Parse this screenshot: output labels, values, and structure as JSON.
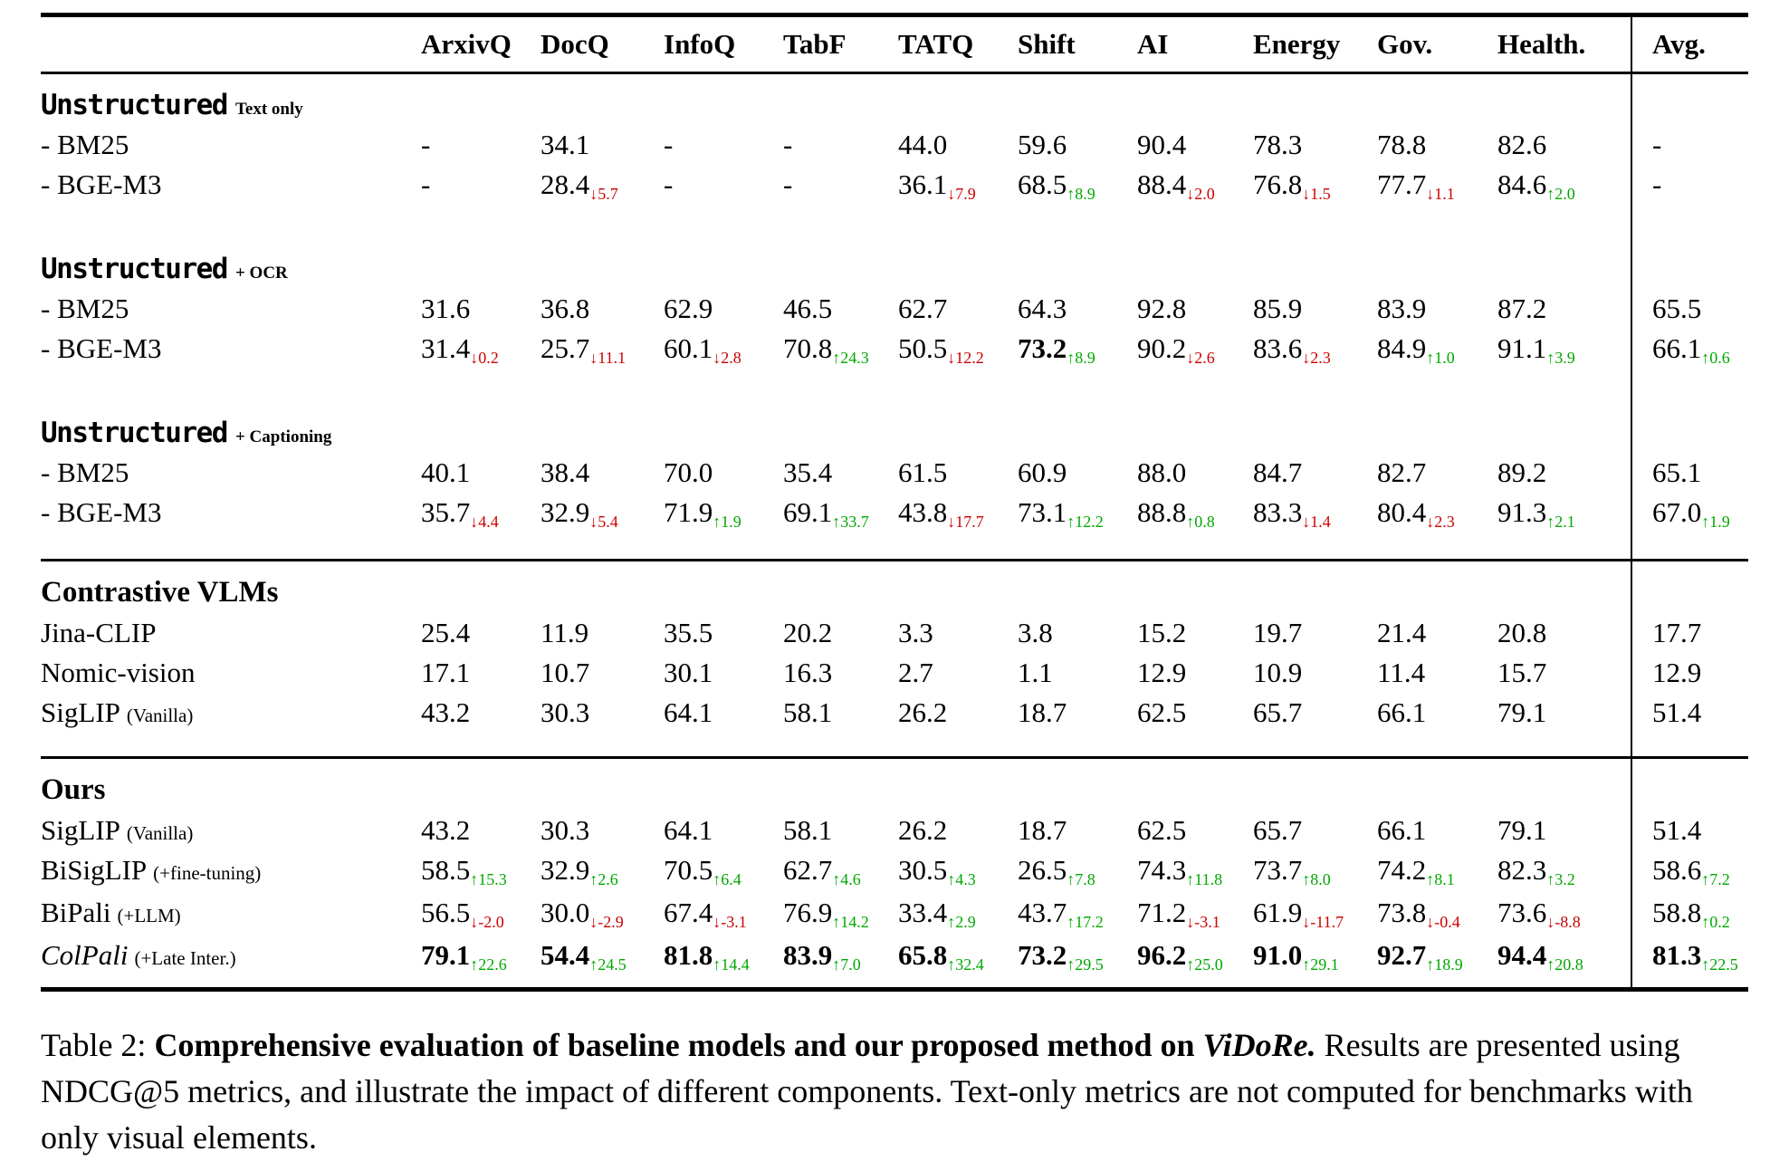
{
  "colors": {
    "positive": "#00A800",
    "negative": "#CC0000",
    "text": "#000000",
    "rule": "#000000"
  },
  "icons": {
    "up": "↑",
    "down": "↓"
  },
  "table": {
    "columns": [
      "ArxivQ",
      "DocQ",
      "InfoQ",
      "TabF",
      "TATQ",
      "Shift",
      "AI",
      "Energy",
      "Gov.",
      "Health.",
      "Avg."
    ],
    "sections": [
      {
        "title": "Unstructured",
        "suffix": "Text only",
        "mono": true,
        "rows": [
          {
            "label": "- BM25",
            "cells": [
              "-",
              "34.1",
              "-",
              "-",
              "44.0",
              "59.6",
              "90.4",
              "78.3",
              "78.8",
              "82.6",
              "-"
            ]
          },
          {
            "label": "- BGE-M3",
            "cells": [
              "-",
              {
                "v": "28.4",
                "d": "5.7",
                "dir": "down"
              },
              "-",
              "-",
              {
                "v": "36.1",
                "d": "7.9",
                "dir": "down"
              },
              {
                "v": "68.5",
                "d": "8.9",
                "dir": "up"
              },
              {
                "v": "88.4",
                "d": "2.0",
                "dir": "down"
              },
              {
                "v": "76.8",
                "d": "1.5",
                "dir": "down"
              },
              {
                "v": "77.7",
                "d": "1.1",
                "dir": "down"
              },
              {
                "v": "84.6",
                "d": "2.0",
                "dir": "up"
              },
              "-"
            ]
          }
        ]
      },
      {
        "title": "Unstructured",
        "suffix": "+ OCR",
        "mono": true,
        "gap": true,
        "rows": [
          {
            "label": "- BM25",
            "cells": [
              "31.6",
              "36.8",
              "62.9",
              "46.5",
              "62.7",
              "64.3",
              "92.8",
              "85.9",
              "83.9",
              "87.2",
              "65.5"
            ]
          },
          {
            "label": "- BGE-M3",
            "cells": [
              {
                "v": "31.4",
                "d": "0.2",
                "dir": "down"
              },
              {
                "v": "25.7",
                "d": "11.1",
                "dir": "down"
              },
              {
                "v": "60.1",
                "d": "2.8",
                "dir": "down"
              },
              {
                "v": "70.8",
                "d": "24.3",
                "dir": "up"
              },
              {
                "v": "50.5",
                "d": "12.2",
                "dir": "down"
              },
              {
                "v": "73.2",
                "b": true,
                "d": "8.9",
                "dir": "up"
              },
              {
                "v": "90.2",
                "d": "2.6",
                "dir": "down"
              },
              {
                "v": "83.6",
                "d": "2.3",
                "dir": "down"
              },
              {
                "v": "84.9",
                "d": "1.0",
                "dir": "up"
              },
              {
                "v": "91.1",
                "d": "3.9",
                "dir": "up"
              },
              {
                "v": "66.1",
                "d": "0.6",
                "dir": "up"
              }
            ]
          }
        ]
      },
      {
        "title": "Unstructured",
        "suffix": "+ Captioning",
        "mono": true,
        "gap": true,
        "rows": [
          {
            "label": "- BM25",
            "cells": [
              "40.1",
              "38.4",
              "70.0",
              "35.4",
              "61.5",
              "60.9",
              "88.0",
              "84.7",
              "82.7",
              "89.2",
              "65.1"
            ]
          },
          {
            "label": "- BGE-M3",
            "cells": [
              {
                "v": "35.7",
                "d": "4.4",
                "dir": "down"
              },
              {
                "v": "32.9",
                "d": "5.4",
                "dir": "down"
              },
              {
                "v": "71.9",
                "d": "1.9",
                "dir": "up"
              },
              {
                "v": "69.1",
                "d": "33.7",
                "dir": "up"
              },
              {
                "v": "43.8",
                "d": "17.7",
                "dir": "down"
              },
              {
                "v": "73.1",
                "d": "12.2",
                "dir": "up"
              },
              {
                "v": "88.8",
                "d": "0.8",
                "dir": "up"
              },
              {
                "v": "83.3",
                "d": "1.4",
                "dir": "down"
              },
              {
                "v": "80.4",
                "d": "2.3",
                "dir": "down"
              },
              {
                "v": "91.3",
                "d": "2.1",
                "dir": "up"
              },
              {
                "v": "67.0",
                "d": "1.9",
                "dir": "up"
              }
            ]
          }
        ]
      },
      {
        "title": "Contrastive VLMs",
        "mono": false,
        "rule": true,
        "rows": [
          {
            "label": "Jina-CLIP",
            "cells": [
              "25.4",
              "11.9",
              "35.5",
              "20.2",
              "3.3",
              "3.8",
              "15.2",
              "19.7",
              "21.4",
              "20.8",
              "17.7"
            ]
          },
          {
            "label": "Nomic-vision",
            "cells": [
              "17.1",
              "10.7",
              "30.1",
              "16.3",
              "2.7",
              "1.1",
              "12.9",
              "10.9",
              "11.4",
              "15.7",
              "12.9"
            ]
          },
          {
            "label": "SigLIP",
            "label_suffix": "(Vanilla)",
            "cells": [
              "43.2",
              "30.3",
              "64.1",
              "58.1",
              "26.2",
              "18.7",
              "62.5",
              "65.7",
              "66.1",
              "79.1",
              "51.4"
            ]
          }
        ]
      },
      {
        "title": "Ours",
        "mono": false,
        "rule": true,
        "rows": [
          {
            "label": "SigLIP",
            "label_suffix": "(Vanilla)",
            "cells": [
              "43.2",
              "30.3",
              "64.1",
              "58.1",
              "26.2",
              "18.7",
              "62.5",
              "65.7",
              "66.1",
              "79.1",
              "51.4"
            ]
          },
          {
            "label": "BiSigLIP",
            "label_suffix": "(+fine-tuning)",
            "cells": [
              {
                "v": "58.5",
                "d": "15.3",
                "dir": "up"
              },
              {
                "v": "32.9",
                "d": "2.6",
                "dir": "up"
              },
              {
                "v": "70.5",
                "d": "6.4",
                "dir": "up"
              },
              {
                "v": "62.7",
                "d": "4.6",
                "dir": "up"
              },
              {
                "v": "30.5",
                "d": "4.3",
                "dir": "up"
              },
              {
                "v": "26.5",
                "d": "7.8",
                "dir": "up"
              },
              {
                "v": "74.3",
                "d": "11.8",
                "dir": "up"
              },
              {
                "v": "73.7",
                "d": "8.0",
                "dir": "up"
              },
              {
                "v": "74.2",
                "d": "8.1",
                "dir": "up"
              },
              {
                "v": "82.3",
                "d": "3.2",
                "dir": "up"
              },
              {
                "v": "58.6",
                "d": "7.2",
                "dir": "up"
              }
            ]
          },
          {
            "label": "BiPali",
            "label_suffix": "(+LLM)",
            "cells": [
              {
                "v": "56.5",
                "d": "-2.0",
                "dir": "down"
              },
              {
                "v": "30.0",
                "d": "-2.9",
                "dir": "down"
              },
              {
                "v": "67.4",
                "d": "-3.1",
                "dir": "down"
              },
              {
                "v": "76.9",
                "d": "14.2",
                "dir": "up"
              },
              {
                "v": "33.4",
                "d": "2.9",
                "dir": "up"
              },
              {
                "v": "43.7",
                "d": "17.2",
                "dir": "up"
              },
              {
                "v": "71.2",
                "d": "-3.1",
                "dir": "down"
              },
              {
                "v": "61.9",
                "d": "-11.7",
                "dir": "down"
              },
              {
                "v": "73.8",
                "d": "-0.4",
                "dir": "down"
              },
              {
                "v": "73.6",
                "d": "-8.8",
                "dir": "down"
              },
              {
                "v": "58.8",
                "d": "0.2",
                "dir": "up"
              }
            ]
          },
          {
            "label": "ColPali",
            "label_suffix": "(+Late Inter.)",
            "label_italic": true,
            "cells": [
              {
                "v": "79.1",
                "b": true,
                "d": "22.6",
                "dir": "up"
              },
              {
                "v": "54.4",
                "b": true,
                "d": "24.5",
                "dir": "up"
              },
              {
                "v": "81.8",
                "b": true,
                "d": "14.4",
                "dir": "up"
              },
              {
                "v": "83.9",
                "b": true,
                "d": "7.0",
                "dir": "up"
              },
              {
                "v": "65.8",
                "b": true,
                "d": "32.4",
                "dir": "up"
              },
              {
                "v": "73.2",
                "b": true,
                "d": "29.5",
                "dir": "up"
              },
              {
                "v": "96.2",
                "b": true,
                "d": "25.0",
                "dir": "up"
              },
              {
                "v": "91.0",
                "b": true,
                "d": "29.1",
                "dir": "up"
              },
              {
                "v": "92.7",
                "b": true,
                "d": "18.9",
                "dir": "up"
              },
              {
                "v": "94.4",
                "b": true,
                "d": "20.8",
                "dir": "up"
              },
              {
                "v": "81.3",
                "b": true,
                "d": "22.5",
                "dir": "up"
              }
            ]
          }
        ]
      }
    ]
  },
  "caption": {
    "prefix": "Table 2: ",
    "bold": "Comprehensive evaluation of baseline models and our proposed method on ",
    "bold_italic": "ViDoRe.",
    "rest": " Results are presented using NDCG@5 metrics, and illustrate the impact of different components. Text-only metrics are not computed for benchmarks with only visual elements."
  }
}
